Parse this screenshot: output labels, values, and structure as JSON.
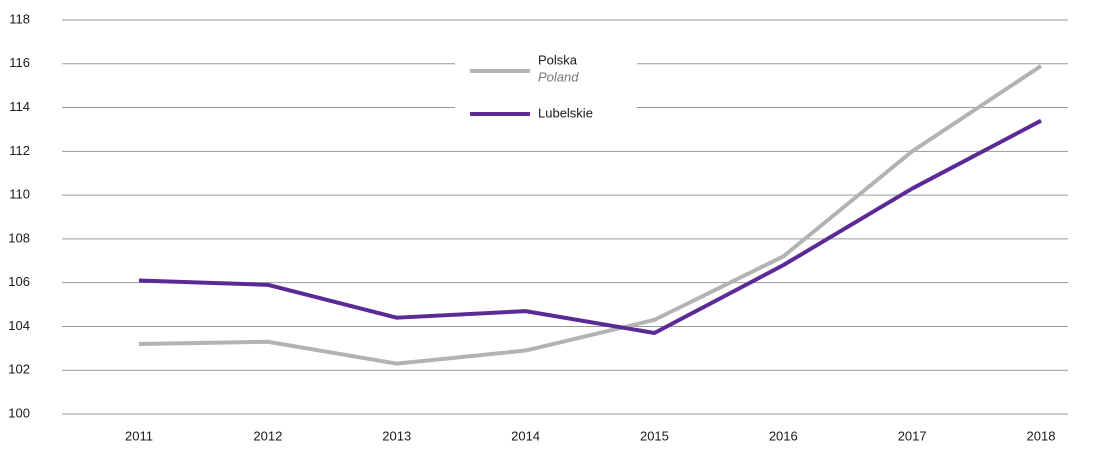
{
  "chart_data": {
    "type": "line",
    "categories": [
      "2011",
      "2012",
      "2013",
      "2014",
      "2015",
      "2016",
      "2017",
      "2018"
    ],
    "series": [
      {
        "name": "Polska",
        "name_alt": "Poland",
        "color": "#b3b3b3",
        "values": [
          103.2,
          103.3,
          102.3,
          102.9,
          104.3,
          107.2,
          112.0,
          115.9
        ]
      },
      {
        "name": "Lubelskie",
        "color": "#5b2a96",
        "values": [
          106.1,
          105.9,
          104.4,
          104.7,
          103.7,
          106.8,
          110.3,
          113.4
        ]
      }
    ],
    "ylim": [
      100,
      118
    ],
    "yticks": [
      100,
      102,
      104,
      106,
      108,
      110,
      112,
      114,
      116,
      118
    ],
    "grid": true
  }
}
